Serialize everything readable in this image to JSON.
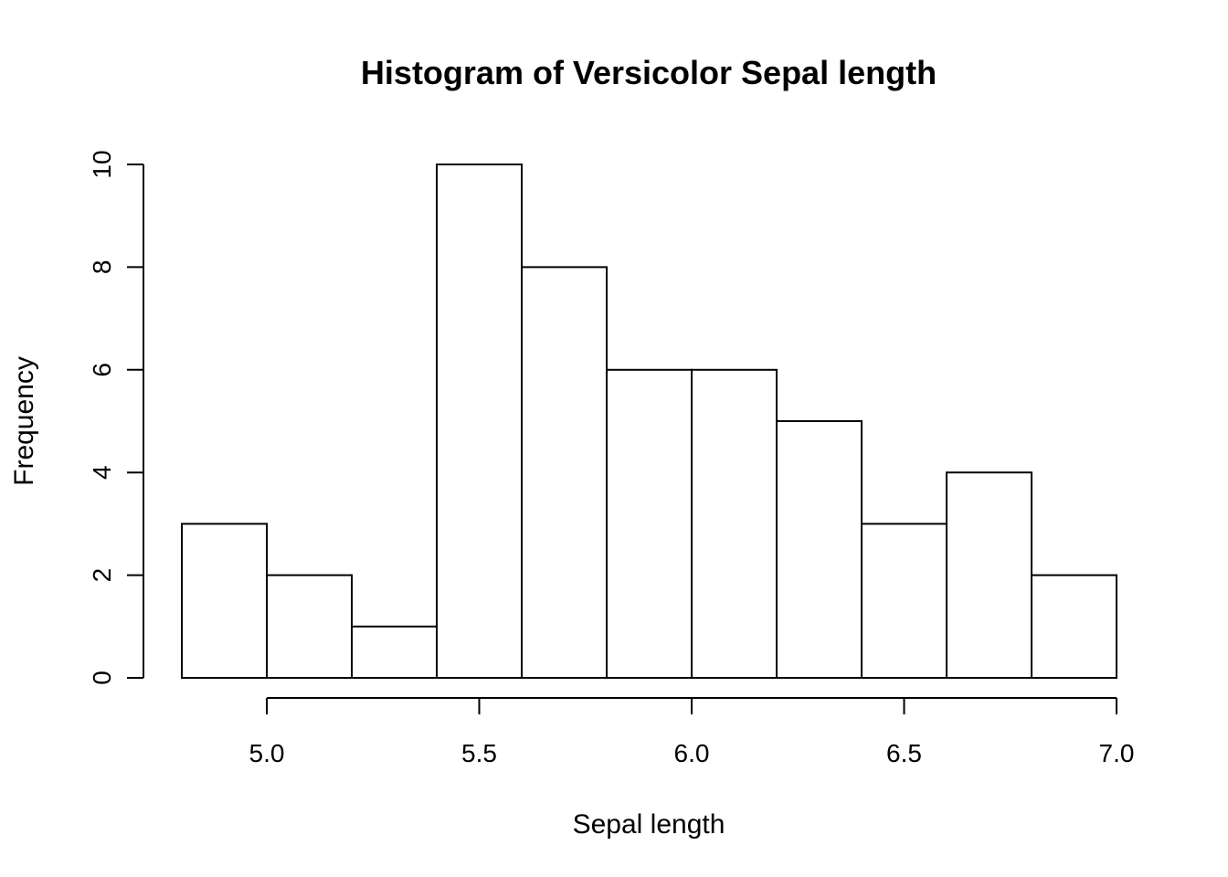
{
  "chart_data": {
    "type": "bar",
    "title": "Histogram of Versicolor Sepal length",
    "xlabel": "Sepal length",
    "ylabel": "Frequency",
    "bins": [
      {
        "start": 4.8,
        "end": 5.0,
        "count": 3
      },
      {
        "start": 5.0,
        "end": 5.2,
        "count": 2
      },
      {
        "start": 5.2,
        "end": 5.4,
        "count": 1
      },
      {
        "start": 5.4,
        "end": 5.6,
        "count": 10
      },
      {
        "start": 5.6,
        "end": 5.8,
        "count": 8
      },
      {
        "start": 5.8,
        "end": 6.0,
        "count": 6
      },
      {
        "start": 6.0,
        "end": 6.2,
        "count": 6
      },
      {
        "start": 6.2,
        "end": 6.4,
        "count": 5
      },
      {
        "start": 6.4,
        "end": 6.6,
        "count": 3
      },
      {
        "start": 6.6,
        "end": 6.8,
        "count": 4
      },
      {
        "start": 6.8,
        "end": 7.0,
        "count": 2
      }
    ],
    "xlim": [
      4.8,
      7.0
    ],
    "ylim": [
      0,
      10
    ],
    "x_ticks": [
      {
        "value": 5.0,
        "label": "5.0"
      },
      {
        "value": 5.5,
        "label": "5.5"
      },
      {
        "value": 6.0,
        "label": "6.0"
      },
      {
        "value": 6.5,
        "label": "6.5"
      },
      {
        "value": 7.0,
        "label": "7.0"
      }
    ],
    "y_ticks": [
      {
        "value": 0,
        "label": "0"
      },
      {
        "value": 2,
        "label": "2"
      },
      {
        "value": 4,
        "label": "4"
      },
      {
        "value": 6,
        "label": "6"
      },
      {
        "value": 8,
        "label": "8"
      },
      {
        "value": 10,
        "label": "10"
      }
    ],
    "grid": false,
    "colors": {
      "bar_fill": "#ffffff",
      "bar_stroke": "#000000"
    }
  }
}
